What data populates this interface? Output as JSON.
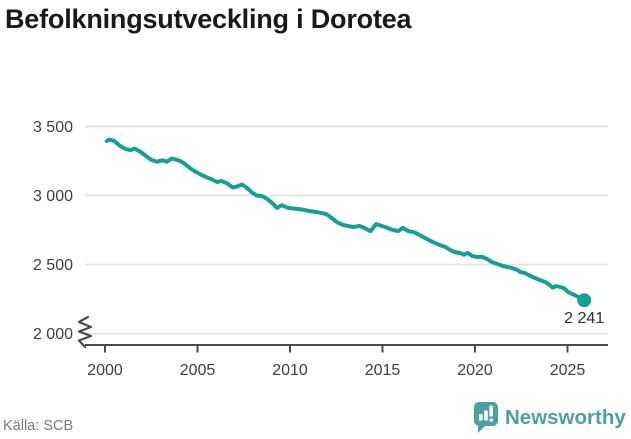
{
  "title": "Befolkningsutveckling i Dorotea",
  "source": "Källa: SCB",
  "brand": {
    "name": "Newsworthy",
    "color": "#4D9FA3",
    "icon": "bar-chart-speech-bubble"
  },
  "chart_data": {
    "type": "line",
    "title": "Befolkningsutveckling i Dorotea",
    "xlabel": "",
    "ylabel": "",
    "x_ticks": [
      2000,
      2005,
      2010,
      2015,
      2020,
      2025
    ],
    "x_tick_labels": [
      "2000",
      "2005",
      "2010",
      "2015",
      "2020",
      "2025"
    ],
    "y_ticks": [
      3500,
      3000,
      2500,
      2000
    ],
    "y_tick_labels": [
      "3 500",
      "3 000",
      "2 500",
      "2 000"
    ],
    "xlim": [
      2000,
      2026.3
    ],
    "ylim": [
      2000,
      3500
    ],
    "axis_break": true,
    "grid": "horizontal",
    "legend": "none",
    "line_color": "#16A095",
    "grid_color": "#E3E3E3",
    "axis_color": "#4B4B4B",
    "end_label": "2 241",
    "end_value": 2241,
    "series": [
      {
        "name": "Befolkning",
        "points": [
          [
            2000.1,
            3395
          ],
          [
            2000.25,
            3406
          ],
          [
            2000.5,
            3395
          ],
          [
            2000.8,
            3360
          ],
          [
            2001.1,
            3338
          ],
          [
            2001.4,
            3328
          ],
          [
            2001.6,
            3340
          ],
          [
            2001.9,
            3318
          ],
          [
            2002.2,
            3288
          ],
          [
            2002.5,
            3258
          ],
          [
            2002.8,
            3245
          ],
          [
            2003.1,
            3255
          ],
          [
            2003.35,
            3245
          ],
          [
            2003.6,
            3268
          ],
          [
            2003.9,
            3258
          ],
          [
            2004.1,
            3248
          ],
          [
            2004.35,
            3225
          ],
          [
            2004.6,
            3198
          ],
          [
            2004.9,
            3172
          ],
          [
            2005.2,
            3150
          ],
          [
            2005.5,
            3132
          ],
          [
            2005.8,
            3115
          ],
          [
            2006.05,
            3098
          ],
          [
            2006.3,
            3106
          ],
          [
            2006.6,
            3088
          ],
          [
            2006.9,
            3058
          ],
          [
            2007.15,
            3066
          ],
          [
            2007.4,
            3080
          ],
          [
            2007.65,
            3058
          ],
          [
            2007.95,
            3020
          ],
          [
            2008.2,
            3000
          ],
          [
            2008.5,
            2995
          ],
          [
            2008.8,
            2972
          ],
          [
            2009.05,
            2944
          ],
          [
            2009.3,
            2910
          ],
          [
            2009.55,
            2930
          ],
          [
            2009.85,
            2912
          ],
          [
            2010.15,
            2906
          ],
          [
            2010.45,
            2902
          ],
          [
            2010.75,
            2896
          ],
          [
            2011.05,
            2888
          ],
          [
            2011.35,
            2881
          ],
          [
            2011.65,
            2875
          ],
          [
            2011.95,
            2866
          ],
          [
            2012.25,
            2838
          ],
          [
            2012.55,
            2806
          ],
          [
            2012.85,
            2788
          ],
          [
            2013.15,
            2778
          ],
          [
            2013.45,
            2772
          ],
          [
            2013.75,
            2780
          ],
          [
            2014.05,
            2763
          ],
          [
            2014.35,
            2742
          ],
          [
            2014.65,
            2792
          ],
          [
            2014.95,
            2780
          ],
          [
            2015.25,
            2766
          ],
          [
            2015.55,
            2750
          ],
          [
            2015.85,
            2742
          ],
          [
            2016.1,
            2766
          ],
          [
            2016.4,
            2742
          ],
          [
            2016.7,
            2734
          ],
          [
            2017.0,
            2714
          ],
          [
            2017.3,
            2692
          ],
          [
            2017.6,
            2670
          ],
          [
            2017.85,
            2655
          ],
          [
            2018.1,
            2641
          ],
          [
            2018.4,
            2627
          ],
          [
            2018.65,
            2606
          ],
          [
            2018.9,
            2590
          ],
          [
            2019.2,
            2583
          ],
          [
            2019.4,
            2570
          ],
          [
            2019.6,
            2584
          ],
          [
            2019.85,
            2562
          ],
          [
            2020.1,
            2554
          ],
          [
            2020.4,
            2555
          ],
          [
            2020.65,
            2540
          ],
          [
            2020.9,
            2518
          ],
          [
            2021.2,
            2504
          ],
          [
            2021.5,
            2489
          ],
          [
            2021.75,
            2482
          ],
          [
            2022.0,
            2475
          ],
          [
            2022.3,
            2460
          ],
          [
            2022.45,
            2446
          ],
          [
            2022.7,
            2438
          ],
          [
            2023.0,
            2417
          ],
          [
            2023.25,
            2402
          ],
          [
            2023.5,
            2388
          ],
          [
            2023.8,
            2373
          ],
          [
            2024.05,
            2351
          ],
          [
            2024.2,
            2332
          ],
          [
            2024.4,
            2344
          ],
          [
            2024.6,
            2337
          ],
          [
            2024.8,
            2329
          ],
          [
            2025.05,
            2300
          ],
          [
            2025.25,
            2286
          ],
          [
            2025.5,
            2271
          ],
          [
            2025.9,
            2241
          ]
        ]
      }
    ]
  }
}
